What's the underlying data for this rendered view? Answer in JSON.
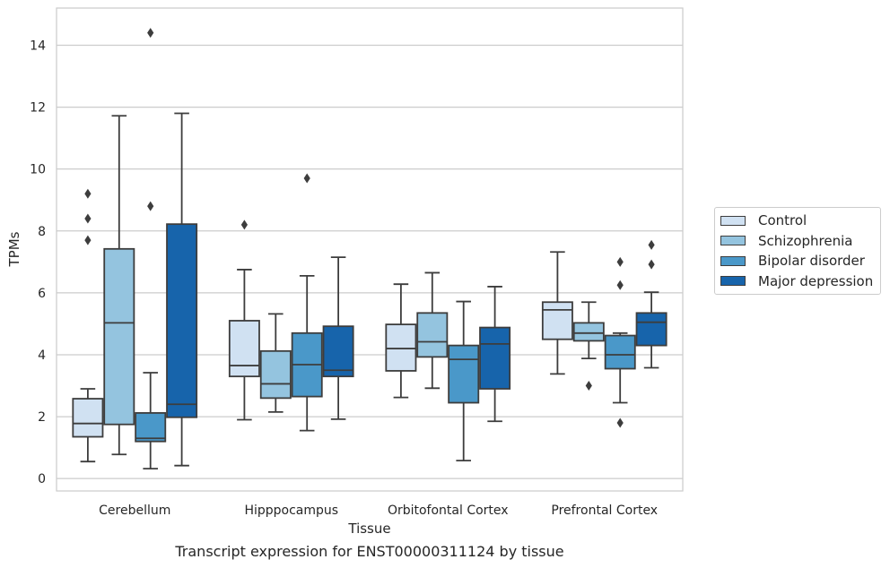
{
  "chart_data": {
    "type": "box",
    "xlabel": "Tissue",
    "ylabel": "TPMs",
    "caption": "Transcript expression for ENST00000311124 by tissue",
    "ylim": [
      -0.4,
      15.2
    ],
    "yticks": [
      0,
      2,
      4,
      6,
      8,
      10,
      12,
      14
    ],
    "grid": true,
    "legend_position": "right",
    "categories": [
      "Cerebellum",
      "Hipppocampus",
      "Orbitofontal Cortex",
      "Prefrontal Cortex"
    ],
    "series": [
      {
        "name": "Control",
        "color": "#d0e1f2",
        "boxes": [
          {
            "whislo": 0.55,
            "q1": 1.35,
            "med": 1.78,
            "q3": 2.58,
            "whishi": 2.9,
            "fliers": [
              7.7,
              8.4,
              9.2
            ]
          },
          {
            "whislo": 1.9,
            "q1": 3.3,
            "med": 3.65,
            "q3": 5.1,
            "whishi": 6.75,
            "fliers": [
              8.2
            ]
          },
          {
            "whislo": 2.62,
            "q1": 3.48,
            "med": 4.2,
            "q3": 4.98,
            "whishi": 6.28,
            "fliers": []
          },
          {
            "whislo": 3.38,
            "q1": 4.5,
            "med": 5.45,
            "q3": 5.7,
            "whishi": 7.32,
            "fliers": []
          }
        ]
      },
      {
        "name": "Schizophrenia",
        "color": "#94c4df",
        "boxes": [
          {
            "whislo": 0.78,
            "q1": 1.75,
            "med": 5.03,
            "q3": 7.42,
            "whishi": 11.72,
            "fliers": []
          },
          {
            "whislo": 2.15,
            "q1": 2.6,
            "med": 3.06,
            "q3": 4.12,
            "whishi": 5.32,
            "fliers": []
          },
          {
            "whislo": 2.92,
            "q1": 3.93,
            "med": 4.42,
            "q3": 5.35,
            "whishi": 6.65,
            "fliers": []
          },
          {
            "whislo": 3.88,
            "q1": 4.45,
            "med": 4.7,
            "q3": 5.03,
            "whishi": 5.7,
            "fliers": [
              3.0
            ]
          }
        ]
      },
      {
        "name": "Bipolar disorder",
        "color": "#4a98c9",
        "boxes": [
          {
            "whislo": 0.32,
            "q1": 1.2,
            "med": 1.3,
            "q3": 2.12,
            "whishi": 3.42,
            "fliers": [
              8.8,
              14.4
            ]
          },
          {
            "whislo": 1.55,
            "q1": 2.65,
            "med": 3.68,
            "q3": 4.7,
            "whishi": 6.55,
            "fliers": [
              9.7
            ]
          },
          {
            "whislo": 0.58,
            "q1": 2.45,
            "med": 3.85,
            "q3": 4.3,
            "whishi": 5.72,
            "fliers": []
          },
          {
            "whislo": 2.45,
            "q1": 3.55,
            "med": 4.0,
            "q3": 4.62,
            "whishi": 4.7,
            "fliers": [
              1.8,
              6.25,
              7.0
            ]
          }
        ]
      },
      {
        "name": "Major depression",
        "color": "#1764ab",
        "boxes": [
          {
            "whislo": 0.42,
            "q1": 1.98,
            "med": 2.4,
            "q3": 8.22,
            "whishi": 11.8,
            "fliers": []
          },
          {
            "whislo": 1.92,
            "q1": 3.3,
            "med": 3.5,
            "q3": 4.92,
            "whishi": 7.15,
            "fliers": []
          },
          {
            "whislo": 1.85,
            "q1": 2.9,
            "med": 4.35,
            "q3": 4.88,
            "whishi": 6.2,
            "fliers": []
          },
          {
            "whislo": 3.58,
            "q1": 4.3,
            "med": 5.05,
            "q3": 5.35,
            "whishi": 6.02,
            "fliers": [
              6.92,
              7.55
            ]
          }
        ]
      }
    ]
  }
}
